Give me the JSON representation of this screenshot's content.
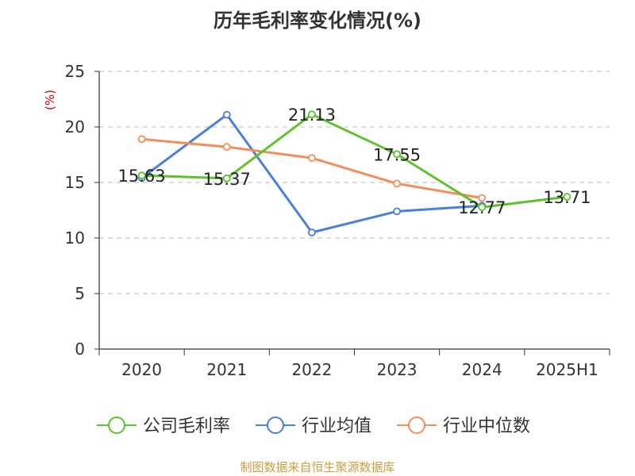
{
  "chart_data": {
    "type": "line",
    "title": "历年毛利率变化情况(%)",
    "ylabel": "(%)",
    "xlabel": "",
    "categories": [
      "2020",
      "2021",
      "2022",
      "2023",
      "2024",
      "2025H1"
    ],
    "ylim": [
      0,
      25
    ],
    "yticks": [
      0,
      5,
      10,
      15,
      20,
      25
    ],
    "grid": true,
    "legend_position": "bottom",
    "series": [
      {
        "name": "公司毛利率",
        "color": "#5ec22c",
        "values": [
          15.63,
          15.37,
          21.13,
          17.55,
          12.77,
          13.71
        ],
        "labels": [
          "15.63",
          "15.37",
          "21.13",
          "17.55",
          "12.77",
          "13.71"
        ]
      },
      {
        "name": "行业均值",
        "color": "#4a7fdb",
        "values": [
          15.4,
          21.1,
          10.5,
          12.4,
          12.9,
          null
        ]
      },
      {
        "name": "行业中位数",
        "color": "#f28e5a",
        "values": [
          18.9,
          18.2,
          17.2,
          14.9,
          13.6,
          null
        ]
      }
    ]
  },
  "source": "制图数据来自恒生聚源数据库"
}
